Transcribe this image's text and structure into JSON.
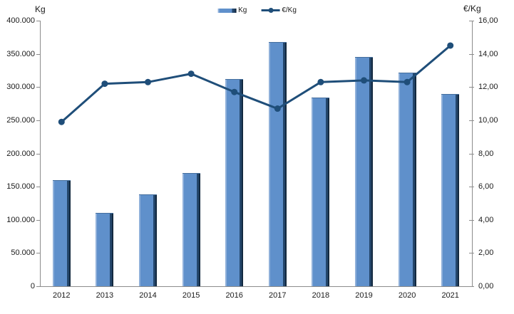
{
  "colors": {
    "bar_fill": "#5f90cb",
    "bar_highlight": "#8fb0da",
    "bar_shadow": "#24466b",
    "bar_edge": "#13293f",
    "line": "#1f4e79",
    "axis": "#8c8c8c",
    "text": "#1a1a1a",
    "background": "#ffffff"
  },
  "axes": {
    "left_title": "Kg",
    "right_title": "€/Kg",
    "left_ticks": [
      "400.000",
      "350.000",
      "300.000",
      "250.000",
      "200.000",
      "150.000",
      "100.000",
      "50.000",
      "0"
    ],
    "right_ticks": [
      "16,00",
      "14,00",
      "12,00",
      "10,00",
      "8,00",
      "6,00",
      "4,00",
      "2,00",
      "0,00"
    ]
  },
  "legend": [
    {
      "label": "Kg",
      "type": "bar"
    },
    {
      "label": "€/Kg",
      "type": "line"
    }
  ],
  "chart_data": {
    "type": "bar",
    "subtype": "combo-bar-line-dual-axis",
    "title": "",
    "categories": [
      "2012",
      "2013",
      "2014",
      "2015",
      "2016",
      "2017",
      "2018",
      "2019",
      "2020",
      "2021"
    ],
    "series": [
      {
        "name": "Kg",
        "type": "bar",
        "axis": "left",
        "values": [
          160000,
          110000,
          138000,
          170000,
          312000,
          368000,
          284000,
          345000,
          322000,
          290000
        ]
      },
      {
        "name": "€/Kg",
        "type": "line",
        "axis": "right",
        "values": [
          9.9,
          12.2,
          12.3,
          12.8,
          11.7,
          10.7,
          12.3,
          12.4,
          12.3,
          14.5
        ]
      }
    ],
    "left_axis": {
      "label": "Kg",
      "min": 0,
      "max": 400000,
      "step": 50000,
      "tick_format": "thousands-dot"
    },
    "right_axis": {
      "label": "€/Kg",
      "min": 0,
      "max": 16,
      "step": 2,
      "tick_format": "comma-decimal"
    },
    "grid": false,
    "legend_position": "top-center"
  }
}
